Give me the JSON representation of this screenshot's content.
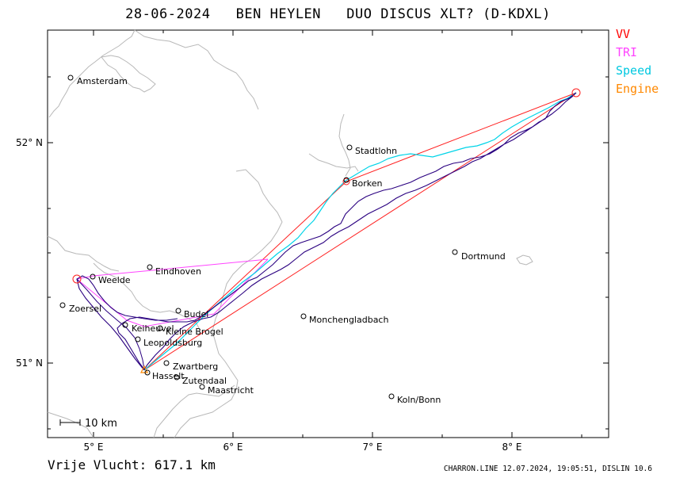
{
  "header": {
    "date": "28-06-2024",
    "pilot": "BEN HEYLEN",
    "glider": "DUO DISCUS XLT? (D-KDXL)"
  },
  "legend": [
    {
      "label": "VV",
      "color": "#ff0000"
    },
    {
      "label": "TRI",
      "color": "#ff44ff"
    },
    {
      "label": "Speed",
      "color": "#00d8e8"
    },
    {
      "label": "Engine",
      "color": "#ff8800"
    }
  ],
  "axes": {
    "lon_labels": [
      "5° E",
      "6° E",
      "7° E",
      "8° E"
    ],
    "lat_labels": [
      "52° N",
      "51° N"
    ]
  },
  "scale_bar": "10 km",
  "cities": [
    {
      "name": "Amsterdam"
    },
    {
      "name": "Stadtlohn"
    },
    {
      "name": "Borken"
    },
    {
      "name": "Eindhoven"
    },
    {
      "name": "Weelde"
    },
    {
      "name": "Dortmund"
    },
    {
      "name": "Zoersel"
    },
    {
      "name": "Budel"
    },
    {
      "name": "Keiheuvel"
    },
    {
      "name": "Kleine Brogel"
    },
    {
      "name": "Monchengladbach"
    },
    {
      "name": "Leopoldsburg"
    },
    {
      "name": "Zwartberg"
    },
    {
      "name": "Hasselt"
    },
    {
      "name": "Zutendaal"
    },
    {
      "name": "Maastricht"
    },
    {
      "name": "Koln/Bonn"
    }
  ],
  "footer": {
    "distance_label": "Vrije Vlucht:",
    "distance_value": "617.1 km",
    "credit": "CHARRON.LINE 12.07.2024, 19:05:51, DISLIN 10.6"
  }
}
